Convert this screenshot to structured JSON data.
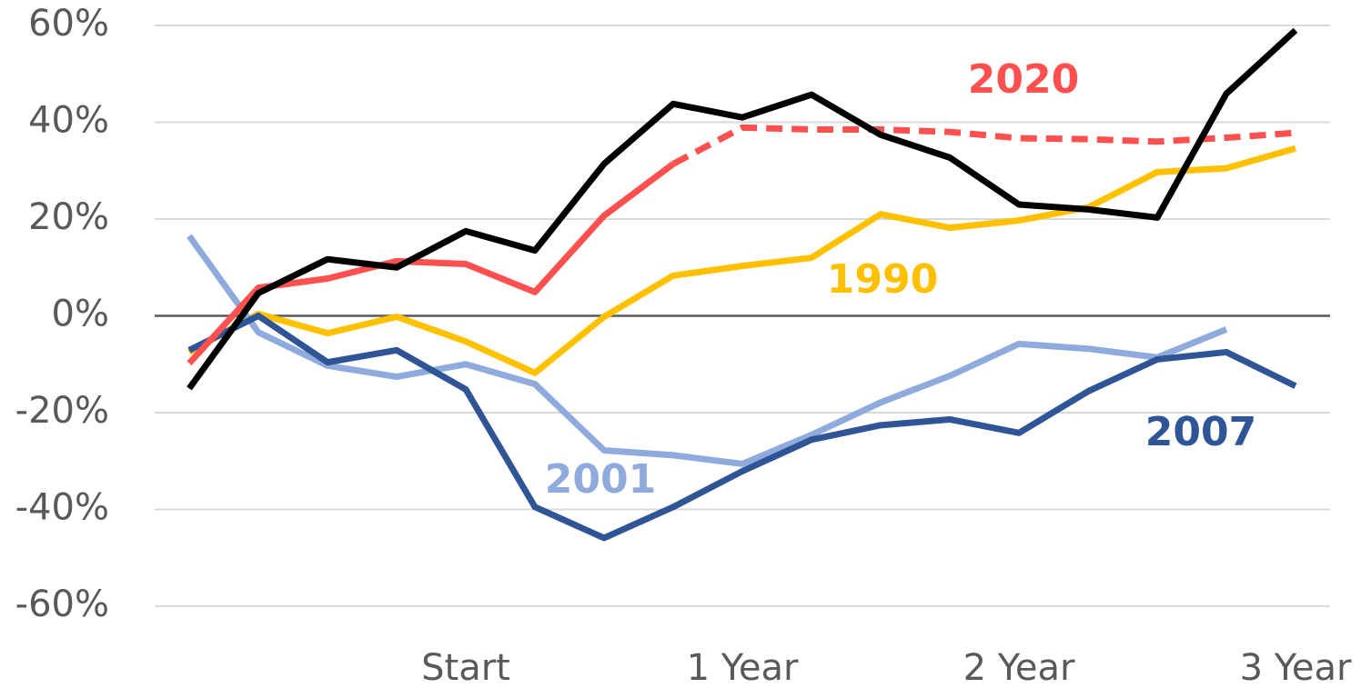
{
  "chart_data": {
    "type": "line",
    "categories": [
      null,
      null,
      null,
      null,
      "Start",
      null,
      null,
      null,
      "1 Year",
      null,
      null,
      null,
      "2 Year",
      null,
      null,
      null,
      "3 Year"
    ],
    "series": [
      {
        "name": "1990",
        "color": "#ffc000",
        "values": [
          -7.5,
          0.4,
          -3.6,
          -0.2,
          -5.3,
          -11.8,
          -0.2,
          8.3,
          10.3,
          12,
          21,
          18.2,
          19.7,
          22.4,
          29.7,
          30.5,
          34.6
        ]
      },
      {
        "name": "2001",
        "color": "#8faadc",
        "values": [
          16.5,
          -3.4,
          -10.3,
          -12.6,
          -10,
          -14.1,
          -27.8,
          -28.8,
          -30.6,
          -24.6,
          -17.9,
          -12.4,
          -5.8,
          -6.8,
          -8.6,
          -2.8,
          null
        ]
      },
      {
        "name": "2007",
        "color": "#2f5597",
        "values": [
          -7.1,
          0,
          -9.6,
          -7.1,
          -15.2,
          -39.5,
          -45.9,
          -39.5,
          -32.1,
          -25.6,
          -22.6,
          -21.4,
          -24.2,
          -15.6,
          -9,
          -7.5,
          -14.5
        ]
      },
      {
        "name": "2020",
        "color": "#ff5050",
        "dash_from_index": 7,
        "values": [
          -9.8,
          5.8,
          7.7,
          11.3,
          10.7,
          4.9,
          20.7,
          31.4,
          38.9,
          38.5,
          38.5,
          38,
          36.7,
          36.5,
          36,
          36.8,
          37.8
        ]
      },
      {
        "color": "#000000",
        "values": [
          -15,
          4.7,
          11.7,
          10,
          17.5,
          13.5,
          31.4,
          43.8,
          41,
          45.7,
          37.4,
          32.7,
          23,
          22,
          20.3,
          45.9,
          59
        ]
      }
    ],
    "ylim": [
      -60,
      60
    ],
    "yticks": [
      {
        "value": -60,
        "label": "-60%"
      },
      {
        "value": -40,
        "label": "-40%"
      },
      {
        "value": -20,
        "label": "-20%"
      },
      {
        "value": 0,
        "label": "0%"
      },
      {
        "value": 20,
        "label": "20%"
      },
      {
        "value": 40,
        "label": "40%"
      },
      {
        "value": 60,
        "label": "60%"
      }
    ],
    "grid": true
  }
}
